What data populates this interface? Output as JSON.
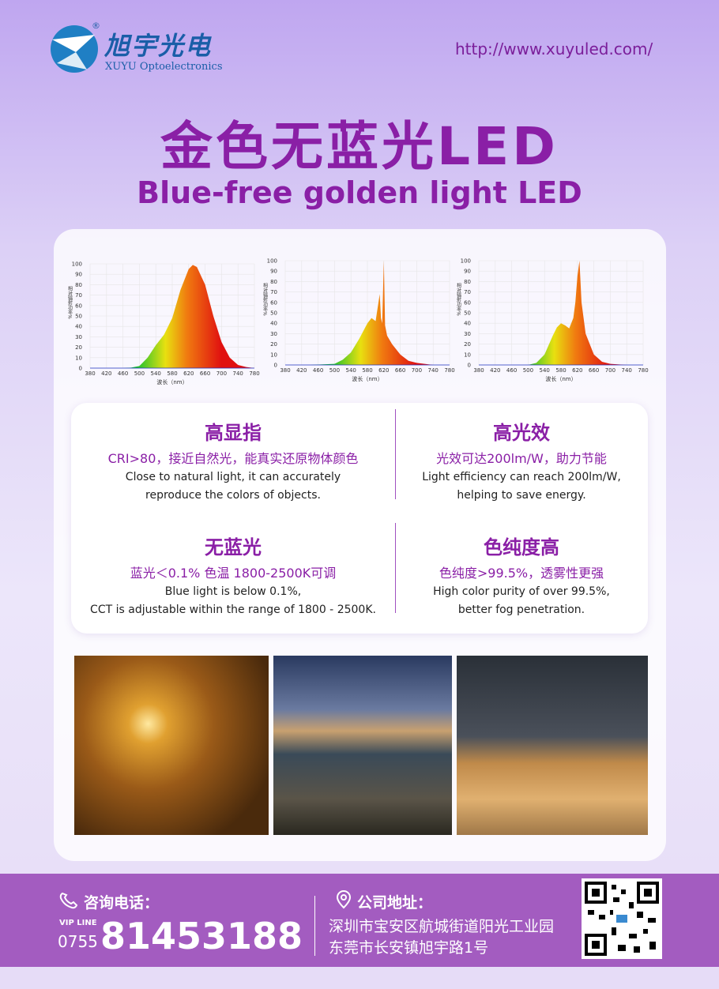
{
  "header": {
    "logo_cn": "旭宇光电",
    "logo_en": "XUYU Optoelectronics",
    "registered": "®",
    "url": "http://www.xuyuled.com/"
  },
  "title": "金色无蓝光LED",
  "subtitle": "Blue-free golden light LED",
  "charts": [
    {
      "type": "area",
      "y_label": "相对辐射功率%",
      "x_label": "波长（nm）",
      "xlim": [
        380,
        780
      ],
      "ylim": [
        0,
        100
      ],
      "xticks": [
        380,
        420,
        460,
        500,
        540,
        580,
        620,
        660,
        700,
        740,
        780
      ],
      "yticks": [
        0,
        10,
        20,
        30,
        40,
        50,
        60,
        70,
        80,
        90,
        100
      ],
      "x": [
        380,
        400,
        420,
        440,
        460,
        480,
        500,
        520,
        540,
        560,
        580,
        600,
        620,
        630,
        640,
        660,
        680,
        700,
        720,
        740,
        760,
        780
      ],
      "values": [
        0,
        0,
        0,
        0,
        0,
        0.5,
        2,
        10,
        22,
        32,
        48,
        75,
        95,
        99,
        97,
        80,
        50,
        25,
        10,
        3,
        1,
        0
      ]
    },
    {
      "type": "area",
      "y_label": "相对辐射功率%",
      "x_label": "波长（nm）",
      "xlim": [
        380,
        780
      ],
      "ylim": [
        0,
        100
      ],
      "xticks": [
        380,
        420,
        460,
        500,
        540,
        580,
        620,
        660,
        700,
        740,
        780
      ],
      "yticks": [
        0,
        10,
        20,
        30,
        40,
        50,
        60,
        70,
        80,
        90,
        100
      ],
      "x": [
        380,
        440,
        500,
        520,
        540,
        560,
        580,
        590,
        600,
        605,
        610,
        613,
        616,
        620,
        623,
        628,
        640,
        660,
        680,
        700,
        740,
        780
      ],
      "values": [
        0,
        0,
        1,
        5,
        12,
        25,
        40,
        45,
        42,
        55,
        68,
        45,
        40,
        100,
        38,
        28,
        20,
        10,
        4,
        2,
        0,
        0
      ]
    },
    {
      "type": "area",
      "y_label": "相对辐射功率%",
      "x_label": "波长（nm）",
      "xlim": [
        380,
        780
      ],
      "ylim": [
        0,
        100
      ],
      "xticks": [
        380,
        420,
        460,
        500,
        540,
        580,
        620,
        660,
        700,
        740,
        780
      ],
      "yticks": [
        0,
        10,
        20,
        30,
        40,
        50,
        60,
        70,
        80,
        90,
        100
      ],
      "x": [
        380,
        440,
        500,
        520,
        540,
        560,
        570,
        580,
        590,
        600,
        610,
        615,
        620,
        625,
        630,
        640,
        660,
        680,
        700,
        740,
        780
      ],
      "values": [
        0,
        0,
        0,
        2,
        10,
        28,
        36,
        40,
        38,
        35,
        45,
        60,
        85,
        100,
        60,
        30,
        10,
        3,
        1,
        0,
        0
      ]
    }
  ],
  "features": [
    {
      "title": "高显指",
      "highlight": "CRI>80，接近自然光，能真实还原物体颜色",
      "en": [
        "Close to natural light, it can accurately",
        "reproduce the colors of objects."
      ]
    },
    {
      "title": "高光效",
      "highlight": "光效可达200lm/W，助力节能",
      "en": [
        "Light efficiency can reach 200lm/W,",
        "helping to save energy."
      ]
    },
    {
      "title": "无蓝光",
      "highlight": "蓝光＜0.1%   色温 1800-2500K可调",
      "en": [
        "Blue light is below 0.1%,",
        "CCT is adjustable within the range of 1800 - 2500K."
      ]
    },
    {
      "title": "色纯度高",
      "highlight": "色纯度>99.5%，透雾性更强",
      "en": [
        "High color purity of over 99.5%,",
        "better fog penetration."
      ]
    }
  ],
  "footer": {
    "phone_label": "咨询电话：",
    "vip": "VIP LINE",
    "area_code": "0755",
    "phone": "81453188",
    "address_label": "公司地址：",
    "address": [
      "深圳市宝安区航城街道阳光工业园",
      "东莞市长安镇旭宇路1号"
    ]
  }
}
